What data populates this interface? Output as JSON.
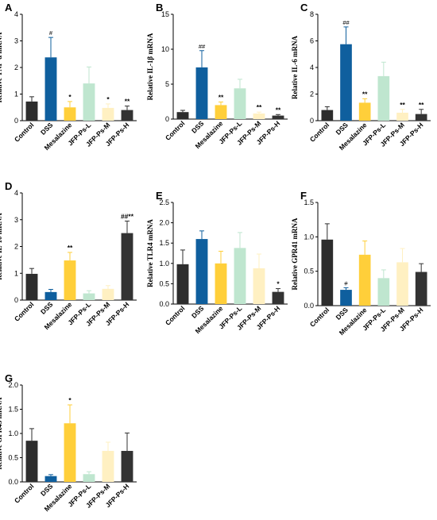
{
  "colors": {
    "Control": "#2d2d2d",
    "DSS": "#0f5f9e",
    "Mesalazine": "#ffcf3a",
    "JFP-Ps-L": "#bfe6cf",
    "JFP-Ps-M": "#fff0c2",
    "JFP-Ps-H": "#333333",
    "axis": "#000000"
  },
  "chart_data": [
    {
      "panel": "A",
      "type": "bar",
      "ylabel": "Relative TNF-α mRNA",
      "categories": [
        "Control",
        "DSS",
        "Mesalazine",
        "JFP-Ps-L",
        "JFP-Ps-M",
        "JFP-Ps-H"
      ],
      "values": [
        0.72,
        2.38,
        0.5,
        1.4,
        0.48,
        0.4
      ],
      "errors": [
        0.18,
        0.75,
        0.22,
        0.62,
        0.15,
        0.15
      ],
      "annotations": [
        "",
        "#",
        "*",
        "",
        "*",
        "**"
      ],
      "ylim": [
        0,
        4
      ],
      "yticks": [
        0,
        1,
        2,
        3,
        4
      ]
    },
    {
      "panel": "B",
      "type": "bar",
      "ylabel": "Relative IL-1β mRNA",
      "categories": [
        "Control",
        "DSS",
        "Mesalazine",
        "JFP-Ps-L",
        "JFP-Ps-M",
        "JFP-Ps-H"
      ],
      "values": [
        1.0,
        7.4,
        2.0,
        4.4,
        0.8,
        0.5
      ],
      "errors": [
        0.25,
        2.4,
        0.45,
        1.3,
        0.2,
        0.15
      ],
      "annotations": [
        "",
        "##",
        "**",
        "",
        "**",
        "**"
      ],
      "ylim": [
        0,
        15
      ],
      "yticks": [
        0,
        5,
        10,
        15
      ]
    },
    {
      "panel": "C",
      "type": "bar",
      "ylabel": "Relative IL-6 mRNA",
      "categories": [
        "Control",
        "DSS",
        "Mesalazine",
        "JFP-Ps-L",
        "JFP-Ps-M",
        "JFP-Ps-H"
      ],
      "values": [
        0.8,
        5.75,
        1.35,
        3.35,
        0.6,
        0.5
      ],
      "errors": [
        0.25,
        1.3,
        0.3,
        1.05,
        0.25,
        0.35
      ],
      "annotations": [
        "",
        "##",
        "**",
        "",
        "**",
        "**"
      ],
      "ylim": [
        0,
        8
      ],
      "yticks": [
        0,
        2,
        4,
        6,
        8
      ]
    },
    {
      "panel": "D",
      "type": "bar",
      "ylabel": "Relative IL-10 mRNA",
      "categories": [
        "Control",
        "DSS",
        "Mesalazine",
        "JFP-Ps-L",
        "JFP-Ps-M",
        "JFP-Ps-H"
      ],
      "values": [
        0.98,
        0.3,
        1.48,
        0.25,
        0.42,
        2.5
      ],
      "errors": [
        0.2,
        0.1,
        0.3,
        0.1,
        0.12,
        0.45
      ],
      "annotations": [
        "",
        "",
        "**",
        "",
        "",
        "##**"
      ],
      "ylim": [
        0,
        4
      ],
      "yticks": [
        0,
        1,
        2,
        3,
        4
      ]
    },
    {
      "panel": "E",
      "type": "bar",
      "ylabel": "Relative TLR4 mRNA",
      "categories": [
        "Control",
        "DSS",
        "Mesalazine",
        "JFP-Ps-L",
        "JFP-Ps-M",
        "JFP-Ps-H"
      ],
      "values": [
        0.98,
        1.6,
        1.0,
        1.38,
        0.88,
        0.3
      ],
      "errors": [
        0.35,
        0.2,
        0.3,
        0.38,
        0.35,
        0.08
      ],
      "annotations": [
        "",
        "",
        "",
        "",
        "",
        "*"
      ],
      "ylim": [
        0,
        2.5
      ],
      "yticks": [
        0.0,
        0.5,
        1.0,
        1.5,
        2.0,
        2.5
      ]
    },
    {
      "panel": "F",
      "type": "bar",
      "ylabel": "Relative GPR41 mRNA",
      "categories": [
        "Control",
        "DSS",
        "Mesalazine",
        "JFP-Ps-L",
        "JFP-Ps-M",
        "JFP-Ps-H"
      ],
      "values": [
        0.96,
        0.23,
        0.74,
        0.4,
        0.63,
        0.49
      ],
      "errors": [
        0.23,
        0.03,
        0.2,
        0.12,
        0.2,
        0.12
      ],
      "annotations": [
        "",
        "#",
        "",
        "",
        "",
        ""
      ],
      "ylim": [
        0,
        1.5
      ],
      "yticks": [
        0.0,
        0.5,
        1.0,
        1.5
      ]
    },
    {
      "panel": "G",
      "type": "bar",
      "ylabel": "Relative GPR43 mRNA",
      "categories": [
        "Control",
        "DSS",
        "Mesalazine",
        "JFP-Ps-L",
        "JFP-Ps-M",
        "JFP-Ps-H"
      ],
      "values": [
        0.85,
        0.12,
        1.21,
        0.16,
        0.64,
        0.64
      ],
      "errors": [
        0.25,
        0.03,
        0.38,
        0.05,
        0.18,
        0.37
      ],
      "annotations": [
        "",
        "",
        "*",
        "",
        "",
        ""
      ],
      "ylim": [
        0,
        2.0
      ],
      "yticks": [
        0.0,
        0.5,
        1.0,
        1.5,
        2.0
      ]
    }
  ]
}
